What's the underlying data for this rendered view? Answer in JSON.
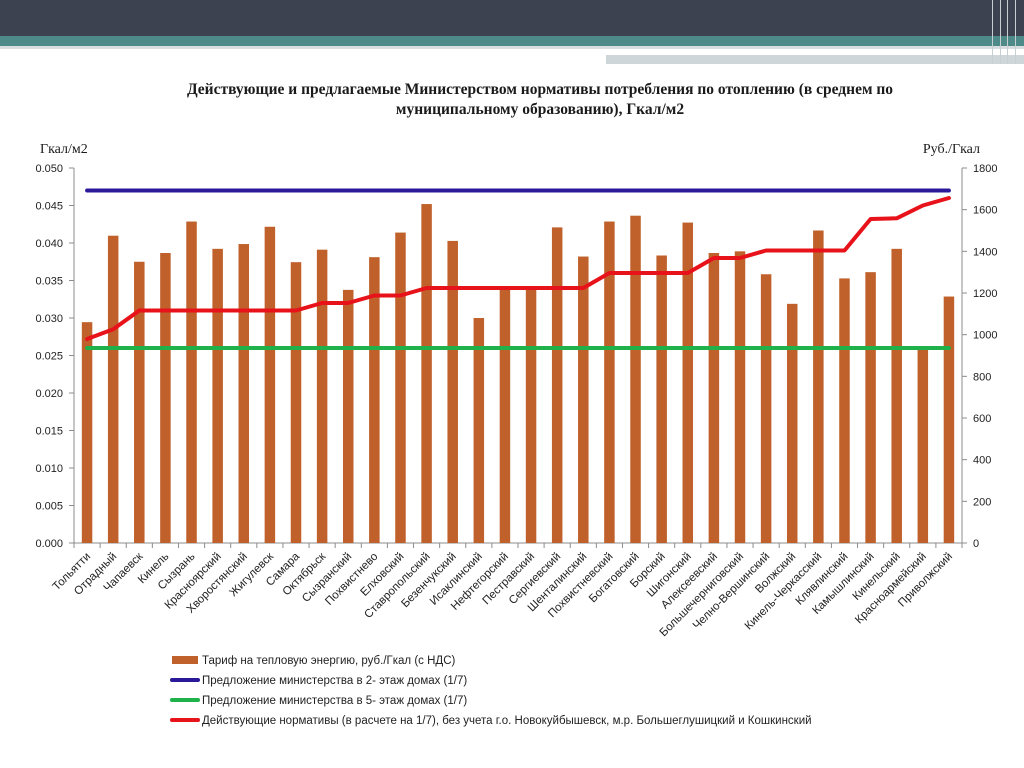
{
  "slide": {
    "title_line1": "Действующие и предлагаемые Министерством нормативы потребления по отоплению (в среднем по",
    "title_line2": "муниципальному образованию), Гкал/м2",
    "left_unit": "Гкал/м2",
    "right_unit": "Руб./Гкал"
  },
  "colors": {
    "bars": "#c0602a",
    "ministry_2floor": "#2a1a9a",
    "ministry_5floor": "#1fb14a",
    "current": "#e8131a"
  },
  "chart_data": {
    "type": "bar",
    "categories": [
      "Тольятти",
      "Отрадный",
      "Чапаевск",
      "Кинель",
      "Сызрань",
      "Красноярский",
      "Хворостянский",
      "Жигулевск",
      "Самара",
      "Октябрьск",
      "Сызранский",
      "Похвистнево",
      "Елховский",
      "Ставропольский",
      "Безенчукский",
      "Исаклинский",
      "Нефтегорский",
      "Пестравский",
      "Сергиевский",
      "Шенталинский",
      "Похвистневский",
      "Богатовский",
      "Борский",
      "Шигонский",
      "Алексеевский",
      "Большечерниговский",
      "Челно-Вершинский",
      "Волжский",
      "Кинель-Черкасский",
      "Клявлинский",
      "Камышлинский",
      "Кинельский",
      "Красноармейский",
      "Приволжский"
    ],
    "y_left": {
      "min": 0,
      "max": 0.05,
      "step": 0.005,
      "ticks": [
        "0.000",
        "0.005",
        "0.010",
        "0.015",
        "0.020",
        "0.025",
        "0.030",
        "0.035",
        "0.040",
        "0.045",
        "0.050"
      ]
    },
    "y_right": {
      "min": 0,
      "max": 1800,
      "step": 200,
      "ticks": [
        "0",
        "200",
        "400",
        "600",
        "800",
        "1000",
        "1200",
        "1400",
        "1600",
        "1800"
      ]
    },
    "series": [
      {
        "name": "Тариф на тепловую энергию, руб./Гкал (с НДС)",
        "type": "bar",
        "axis": "right",
        "values": [
          1060,
          1475,
          1350,
          1392,
          1543,
          1412,
          1435,
          1518,
          1348,
          1408,
          1215,
          1372,
          1490,
          1627,
          1450,
          1080,
          1222,
          1223,
          1515,
          1375,
          1543,
          1571,
          1380,
          1538,
          1392,
          1400,
          1290,
          1148,
          1500,
          1270,
          1300,
          1412,
          930,
          1183
        ]
      },
      {
        "name": "Предложение министерства в 2- этаж домах (1/7)",
        "type": "line",
        "axis": "left",
        "values": [
          0.047,
          0.047,
          0.047,
          0.047,
          0.047,
          0.047,
          0.047,
          0.047,
          0.047,
          0.047,
          0.047,
          0.047,
          0.047,
          0.047,
          0.047,
          0.047,
          0.047,
          0.047,
          0.047,
          0.047,
          0.047,
          0.047,
          0.047,
          0.047,
          0.047,
          0.047,
          0.047,
          0.047,
          0.047,
          0.047,
          0.047,
          0.047,
          0.047,
          0.047
        ]
      },
      {
        "name": "Предложение министерства в 5- этаж домах (1/7)",
        "type": "line",
        "axis": "left",
        "values": [
          0.026,
          0.026,
          0.026,
          0.026,
          0.026,
          0.026,
          0.026,
          0.026,
          0.026,
          0.026,
          0.026,
          0.026,
          0.026,
          0.026,
          0.026,
          0.026,
          0.026,
          0.026,
          0.026,
          0.026,
          0.026,
          0.026,
          0.026,
          0.026,
          0.026,
          0.026,
          0.026,
          0.026,
          0.026,
          0.026,
          0.026,
          0.026,
          0.026,
          0.026
        ]
      },
      {
        "name": "Действующие нормативы (в расчете на 1/7),  без учета г.о. Новокуйбышевск, м.р. Большеглушицкий и Кошкинский",
        "type": "line",
        "axis": "left",
        "values": [
          0.0272,
          0.0285,
          0.031,
          0.031,
          0.031,
          0.031,
          0.031,
          0.031,
          0.031,
          0.032,
          0.032,
          0.033,
          0.033,
          0.034,
          0.034,
          0.034,
          0.034,
          0.034,
          0.034,
          0.034,
          0.036,
          0.036,
          0.036,
          0.036,
          0.038,
          0.038,
          0.039,
          0.039,
          0.039,
          0.039,
          0.0432,
          0.0433,
          0.045,
          0.046
        ]
      }
    ],
    "grid": false,
    "legend_position": "bottom"
  }
}
